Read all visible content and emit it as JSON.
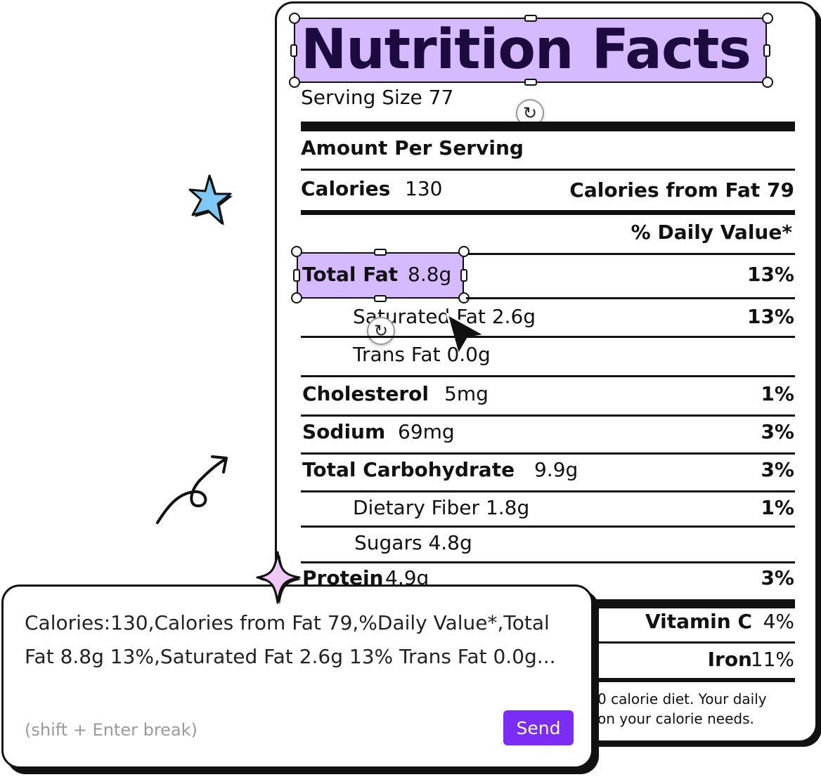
{
  "label": {
    "title": "Nutrition Facts",
    "serving_size": "Serving Size 77",
    "amount_per_serving": "Amount Per Serving",
    "calories_label": "Calories",
    "calories_value": "130",
    "calories_from_fat": "Calories from Fat 79",
    "daily_value_header": "% Daily Value*",
    "rows": {
      "total_fat": {
        "name": "Total Fat",
        "amount": "8.8g",
        "dv": "13%"
      },
      "saturated_fat": {
        "name": "Saturated Fat 2.6g",
        "dv": "13%"
      },
      "trans_fat": {
        "name": "Trans Fat 0.0g"
      },
      "cholesterol": {
        "name": "Cholesterol",
        "amount": "5mg",
        "dv": "1%"
      },
      "sodium": {
        "name": "Sodium",
        "amount": "69mg",
        "dv": "3%"
      },
      "total_carb": {
        "name": "Total Carbohydrate",
        "amount": "9.9g",
        "dv": "3%"
      },
      "dietary_fiber": {
        "name": "Dietary Fiber 1.8g",
        "dv": "1%"
      },
      "sugars": {
        "name": "Sugars 4.8g"
      },
      "protein": {
        "name": "Protein",
        "amount": "4.9g",
        "dv": "3%"
      }
    },
    "vitamin_c": {
      "name": "Vitamin C",
      "dv": "4%"
    },
    "iron": {
      "name": "Iron",
      "dv": "11%"
    },
    "footnote_line1": "0 calorie diet. Your daily",
    "footnote_line2": "on your calorie needs."
  },
  "chat": {
    "message": "Calories:130,Calories from Fat 79,%Daily Value*,Total Fat 8.8g 13%,Saturated Fat 2.6g 13% Trans Fat 0.0g...",
    "hint": "(shift + Enter break)",
    "send_label": "Send"
  },
  "colors": {
    "selection_fill": "#d6baff",
    "send_button": "#7b2cf5",
    "star_blue": "#7ec8f5",
    "star_pink": "#f0c8f5"
  },
  "icons": {
    "rotate": "rotate-icon",
    "cursor": "arrow-cursor-icon",
    "star": "sparkle-star-icon",
    "arrow": "curly-arrow-icon"
  }
}
